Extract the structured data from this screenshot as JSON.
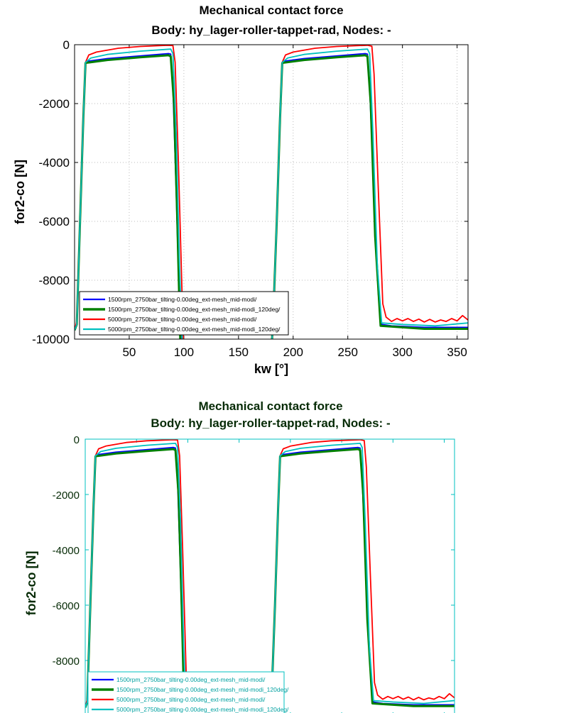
{
  "chart_data": [
    {
      "type": "line",
      "title": "Mechanical contact force",
      "subtitle": "Body: hy_lager-roller-tappet-rad, Nodes: -",
      "xlabel": "kw [°]",
      "ylabel": "for2-co [N]",
      "xlim": [
        0,
        360
      ],
      "ylim": [
        -10000,
        0
      ],
      "xticks": [
        "50",
        "100",
        "150",
        "200",
        "250",
        "300",
        "350"
      ],
      "yticks": [
        "0",
        "-2000",
        "-4000",
        "-6000",
        "-8000",
        "-10000"
      ],
      "grid": true,
      "legend_placement": "bottom-left",
      "frame_color": "#000000",
      "text_color": "#000000",
      "series": [
        {
          "name": "1500rpm_2750bar_tilting-0.00deg_ext-mesh_mid-modi/",
          "color": "#0000ff",
          "x": [
            0,
            2,
            5,
            8,
            10,
            12,
            30,
            60,
            86,
            88,
            90,
            93,
            96,
            98,
            180,
            182,
            185,
            188,
            190,
            192,
            210,
            240,
            266,
            268,
            270,
            274,
            278,
            281,
            290,
            320,
            360
          ],
          "y": [
            -9700,
            -9500,
            -6000,
            -2500,
            -650,
            -560,
            -470,
            -380,
            -300,
            -320,
            -1500,
            -5000,
            -9000,
            -10500,
            -10500,
            -9000,
            -6000,
            -2500,
            -650,
            -560,
            -470,
            -380,
            -300,
            -320,
            -1500,
            -5000,
            -8500,
            -9500,
            -9550,
            -9600,
            -9600
          ]
        },
        {
          "name": "1500rpm_2750bar_tilting-0.00deg_ext-mesh_mid-modi_120deg/",
          "color": "#008000",
          "x": [
            0,
            2,
            5,
            8,
            10,
            30,
            60,
            86,
            88,
            91,
            94,
            97,
            180,
            182,
            185,
            188,
            190,
            210,
            240,
            266,
            268,
            271,
            275,
            280,
            320,
            360
          ],
          "y": [
            -9700,
            -9500,
            -6000,
            -2500,
            -620,
            -520,
            -430,
            -360,
            -400,
            -2000,
            -6000,
            -10500,
            -10500,
            -9000,
            -6000,
            -2500,
            -620,
            -520,
            -430,
            -360,
            -400,
            -2000,
            -6500,
            -9550,
            -9650,
            -9650
          ]
        },
        {
          "name": "5000rpm_2750bar_tilting-0.00deg_ext-mesh_mid-modi/",
          "color": "#ff0000",
          "x": [
            0,
            2,
            5,
            8,
            10,
            13,
            20,
            40,
            60,
            85,
            90,
            92,
            95,
            98,
            100,
            180,
            182,
            185,
            188,
            190,
            193,
            200,
            220,
            240,
            268,
            272,
            274,
            278,
            282,
            285,
            290,
            295,
            300,
            305,
            310,
            315,
            320,
            325,
            330,
            335,
            340,
            345,
            350,
            355,
            360
          ],
          "y": [
            -9700,
            -9400,
            -6000,
            -2500,
            -600,
            -350,
            -250,
            -120,
            -60,
            -20,
            -30,
            -600,
            -4000,
            -8000,
            -10500,
            -10500,
            -9000,
            -6000,
            -2500,
            -600,
            -350,
            -250,
            -120,
            -60,
            -20,
            -50,
            -1000,
            -5000,
            -8800,
            -9250,
            -9400,
            -9300,
            -9380,
            -9300,
            -9400,
            -9320,
            -9420,
            -9330,
            -9420,
            -9350,
            -9400,
            -9300,
            -9380,
            -9200,
            -9350
          ]
        },
        {
          "name": "5000rpm_2750bar_tilting-0.00deg_ext-mesh_mid-modi_120deg/",
          "color": "#00c0c0",
          "x": [
            0,
            2,
            5,
            8,
            10,
            15,
            30,
            60,
            88,
            90,
            93,
            96,
            99,
            180,
            182,
            185,
            188,
            190,
            195,
            210,
            240,
            268,
            270,
            273,
            277,
            281,
            300,
            330,
            360
          ],
          "y": [
            -9700,
            -9500,
            -6000,
            -2500,
            -600,
            -450,
            -330,
            -220,
            -150,
            -300,
            -3000,
            -7500,
            -10500,
            -10500,
            -9000,
            -6000,
            -2500,
            -600,
            -450,
            -330,
            -220,
            -150,
            -300,
            -3000,
            -7500,
            -9450,
            -9500,
            -9550,
            -9450
          ]
        }
      ]
    },
    {
      "type": "line",
      "title": "Mechanical contact force",
      "subtitle": "Body: hy_lager-roller-tappet-rad, Nodes: -",
      "ylabel": "for2-co [N]",
      "xlim": [
        0,
        360
      ],
      "ylim": [
        -10000,
        0
      ],
      "yticks": [
        "0",
        "-2000",
        "-4000",
        "-6000",
        "-8000"
      ],
      "grid": false,
      "legend_placement": "bottom-left",
      "frame_color": "#00c0c0",
      "text_color": "#062b06",
      "series_same_as_first": true
    }
  ]
}
